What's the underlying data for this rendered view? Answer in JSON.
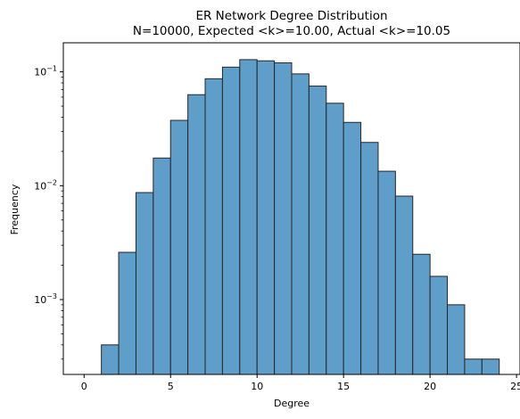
{
  "chart_data": {
    "type": "bar",
    "title": "ER Network Degree Distribution",
    "subtitle": "N=10000, Expected <k>=10.00, Actual <k>=10.05",
    "xlabel": "Degree",
    "ylabel": "Frequency",
    "xlim": [
      -1.2,
      25.2
    ],
    "ylim": [
      0.00022,
      0.18
    ],
    "yscale": "log",
    "x_ticks": [
      0,
      5,
      10,
      15,
      20,
      25
    ],
    "y_ticks": [
      {
        "value": 0.001,
        "base": "10",
        "exp": "−3"
      },
      {
        "value": 0.01,
        "base": "10",
        "exp": "−2"
      },
      {
        "value": 0.1,
        "base": "10",
        "exp": "−1"
      }
    ],
    "bin_width": 1,
    "bins": [
      {
        "x": 1,
        "value": 0.0004
      },
      {
        "x": 2,
        "value": 0.0026
      },
      {
        "x": 3,
        "value": 0.0087
      },
      {
        "x": 4,
        "value": 0.0175
      },
      {
        "x": 5,
        "value": 0.0375
      },
      {
        "x": 6,
        "value": 0.063
      },
      {
        "x": 7,
        "value": 0.087
      },
      {
        "x": 8,
        "value": 0.11
      },
      {
        "x": 9,
        "value": 0.128
      },
      {
        "x": 10,
        "value": 0.125
      },
      {
        "x": 11,
        "value": 0.12
      },
      {
        "x": 12,
        "value": 0.096
      },
      {
        "x": 13,
        "value": 0.075
      },
      {
        "x": 14,
        "value": 0.053
      },
      {
        "x": 15,
        "value": 0.036
      },
      {
        "x": 16,
        "value": 0.024
      },
      {
        "x": 17,
        "value": 0.0134
      },
      {
        "x": 18,
        "value": 0.0081
      },
      {
        "x": 19,
        "value": 0.0025
      },
      {
        "x": 20,
        "value": 0.0016
      },
      {
        "x": 21,
        "value": 0.0009
      },
      {
        "x": 22,
        "value": 0.0003
      },
      {
        "x": 23,
        "value": 0.0003
      }
    ],
    "bar_color": "#5f9ec9",
    "edge_color": "#262626",
    "grid": false,
    "legend": "none"
  }
}
